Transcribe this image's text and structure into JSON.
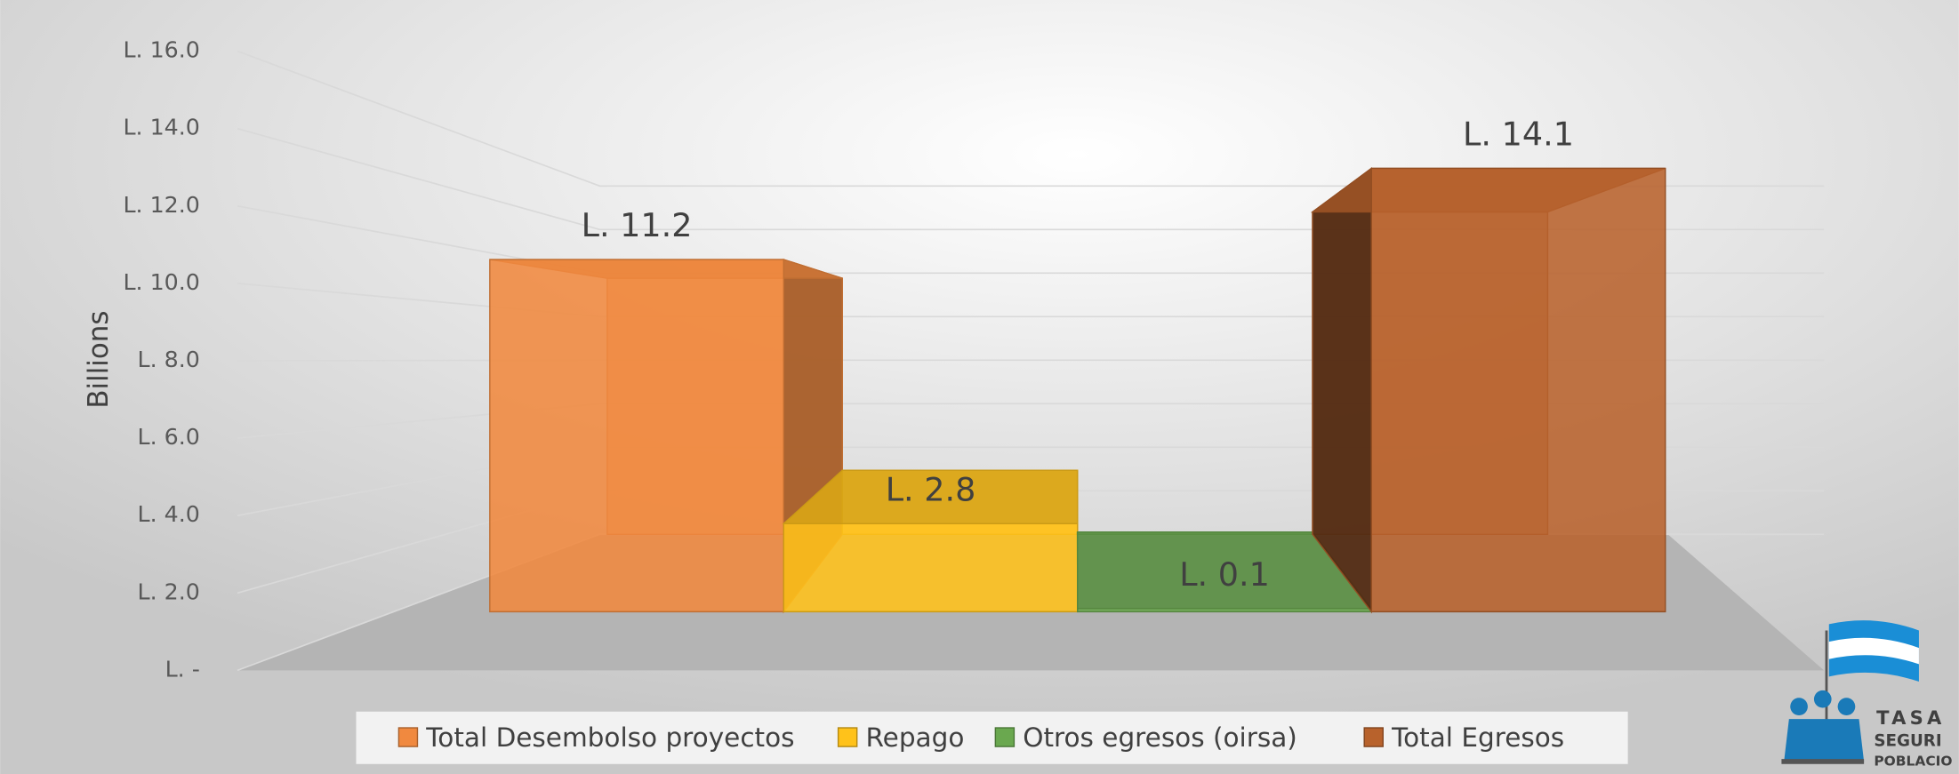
{
  "chart_data": {
    "type": "bar3d",
    "ylabel": "Billions",
    "series": [
      {
        "name": "Total Desembolso proyectos",
        "color": "#f0893f",
        "values": [
          11.2
        ],
        "value_labels": [
          "L. 11.2"
        ]
      },
      {
        "name": "Repago",
        "color": "#ffc21a",
        "values": [
          2.8
        ],
        "value_labels": [
          "L. 2.8"
        ]
      },
      {
        "name": "Otros egresos (oirsa)",
        "color": "#6aa84f",
        "values": [
          0.1
        ],
        "value_labels": [
          "L. 0.1"
        ]
      },
      {
        "name": "Total Egresos",
        "color": "#b8622c",
        "values": [
          14.1
        ],
        "value_labels": [
          "L. 14.1"
        ]
      }
    ],
    "ylim": [
      0,
      16
    ],
    "yticks": [
      {
        "value": 0,
        "label": "L. -"
      },
      {
        "value": 2,
        "label": "L. 2.0"
      },
      {
        "value": 4,
        "label": "L. 4.0"
      },
      {
        "value": 6,
        "label": "L. 6.0"
      },
      {
        "value": 8,
        "label": "L. 8.0"
      },
      {
        "value": 10,
        "label": "L. 10.0"
      },
      {
        "value": 12,
        "label": "L. 12.0"
      },
      {
        "value": 14,
        "label": "L. 14.0"
      },
      {
        "value": 16,
        "label": "L. 16.0"
      }
    ],
    "grid": true,
    "legend": "bottom",
    "logo": [
      "TASA",
      "SEGURI",
      "POBLACIO"
    ]
  }
}
